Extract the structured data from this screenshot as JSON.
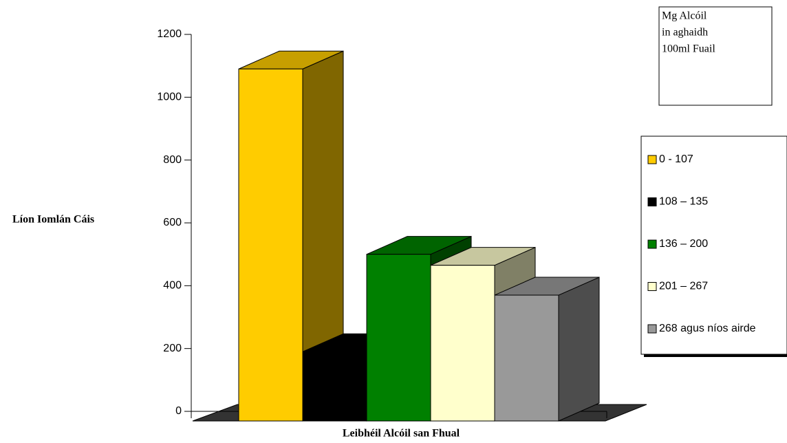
{
  "chart_data": {
    "type": "bar3d",
    "y_label": "Líon Iomlán Cáis",
    "x_label": "Leibhéil Alcóil san Fhual",
    "legend_title": [
      "Mg Alcóil",
      "in aghaidh",
      "100ml Fuail"
    ],
    "categories": [
      null
    ],
    "series": [
      {
        "name": "0 - 107",
        "color": "#ffcc00",
        "values": [
          1090
        ]
      },
      {
        "name": "108 – 135",
        "color": "#000000",
        "values": [
          190
        ]
      },
      {
        "name": "136 – 200",
        "color": "#008000",
        "values": [
          500
        ]
      },
      {
        "name": "201 – 267",
        "color": "#ffffcc",
        "values": [
          465
        ]
      },
      {
        "name": "268 agus níos airde",
        "color": "#999999",
        "values": [
          370
        ]
      }
    ],
    "ylim": [
      0,
      1200
    ],
    "yticks": [
      0,
      200,
      400,
      600,
      800,
      1000,
      1200
    ],
    "legend_position": "right"
  }
}
